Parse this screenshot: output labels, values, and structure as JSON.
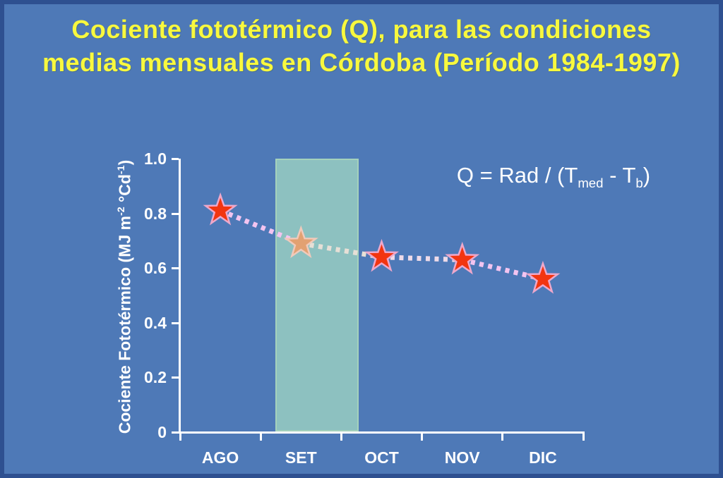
{
  "title": {
    "line1": "Cociente fototérmico (Q), para las condiciones",
    "line2": "medias mensuales en Córdoba (Período 1984-1997)"
  },
  "formula": {
    "prefix": "Q = Rad / (T",
    "sub1": "med",
    "mid": " - T",
    "sub2": "b",
    "suffix": ")"
  },
  "chart_data": {
    "type": "line",
    "subtype": "dotted line with star markers",
    "categories": [
      "AGO",
      "SET",
      "OCT",
      "NOV",
      "DIC"
    ],
    "values": [
      0.81,
      0.69,
      0.64,
      0.63,
      0.56
    ],
    "ylabel": "Cociente Fototérmico (MJ m-2 °Cd-1)",
    "ylabel_parts": {
      "p1": "Cociente Fototérmico (MJ m",
      "sup1": "-2",
      "p2": " °Cd",
      "sup2": "-1",
      "p3": ")"
    },
    "xlabel": "",
    "ylim": [
      0,
      1.0
    ],
    "yticks": [
      {
        "value": 1.0,
        "label": "1.0"
      },
      {
        "value": 0.8,
        "label": "0.8"
      },
      {
        "value": 0.6,
        "label": "0.6"
      },
      {
        "value": 0.4,
        "label": "0.4"
      },
      {
        "value": 0.2,
        "label": "0.2"
      },
      {
        "value": 0.0,
        "label": "0"
      }
    ],
    "grid": false,
    "legend": false,
    "marker": "star",
    "highlight_band": {
      "category": "SET",
      "from_value": 0,
      "to_value": 1.0
    }
  },
  "colors": {
    "slide_background": "#4e79b7",
    "slide_border": "#2e5090",
    "title_text": "#f8f83e",
    "axis_and_labels": "#ffffff",
    "highlight_band_fill": "#8dc1c0",
    "highlight_band_edge": "#a5d2bc",
    "star_fill": "#f23510",
    "star_outline": "#eda8cb",
    "highlighted_star_fill": "#e2a172",
    "highlighted_star_outline": "#f0cabb",
    "line_segment_colors": [
      "#f3c4f0",
      "#e6dfd6",
      "#eedbe9",
      "#f3c4f0"
    ]
  }
}
